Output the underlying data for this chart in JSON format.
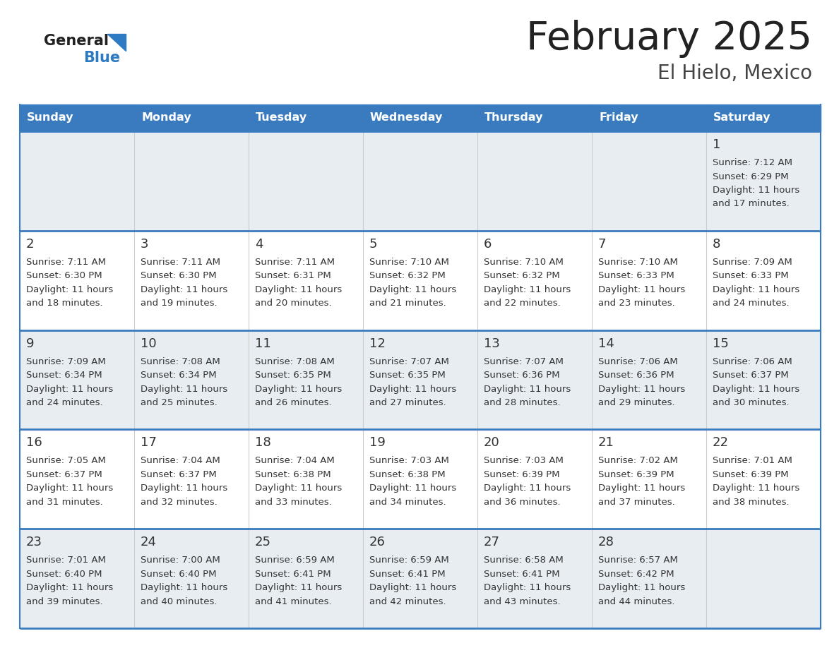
{
  "title": "February 2025",
  "subtitle": "El Hielo, Mexico",
  "header_color": "#3a7bbf",
  "header_text_color": "#ffffff",
  "days_of_week": [
    "Sunday",
    "Monday",
    "Tuesday",
    "Wednesday",
    "Thursday",
    "Friday",
    "Saturday"
  ],
  "bg_color": "#ffffff",
  "row_bg_odd": "#e8edf2",
  "row_bg_even": "#ffffff",
  "day_number_color": "#333333",
  "info_text_color": "#333333",
  "border_color": "#3a7bbf",
  "logo_black": "#222222",
  "logo_blue": "#2e7bc4",
  "title_color": "#222222",
  "subtitle_color": "#444444",
  "calendar_data": [
    [
      null,
      null,
      null,
      null,
      null,
      null,
      {
        "day": 1,
        "sunrise": "7:12 AM",
        "sunset": "6:29 PM",
        "daylight": "11 hours",
        "daylight2": "and 17 minutes."
      }
    ],
    [
      {
        "day": 2,
        "sunrise": "7:11 AM",
        "sunset": "6:30 PM",
        "daylight": "11 hours",
        "daylight2": "and 18 minutes."
      },
      {
        "day": 3,
        "sunrise": "7:11 AM",
        "sunset": "6:30 PM",
        "daylight": "11 hours",
        "daylight2": "and 19 minutes."
      },
      {
        "day": 4,
        "sunrise": "7:11 AM",
        "sunset": "6:31 PM",
        "daylight": "11 hours",
        "daylight2": "and 20 minutes."
      },
      {
        "day": 5,
        "sunrise": "7:10 AM",
        "sunset": "6:32 PM",
        "daylight": "11 hours",
        "daylight2": "and 21 minutes."
      },
      {
        "day": 6,
        "sunrise": "7:10 AM",
        "sunset": "6:32 PM",
        "daylight": "11 hours",
        "daylight2": "and 22 minutes."
      },
      {
        "day": 7,
        "sunrise": "7:10 AM",
        "sunset": "6:33 PM",
        "daylight": "11 hours",
        "daylight2": "and 23 minutes."
      },
      {
        "day": 8,
        "sunrise": "7:09 AM",
        "sunset": "6:33 PM",
        "daylight": "11 hours",
        "daylight2": "and 24 minutes."
      }
    ],
    [
      {
        "day": 9,
        "sunrise": "7:09 AM",
        "sunset": "6:34 PM",
        "daylight": "11 hours",
        "daylight2": "and 24 minutes."
      },
      {
        "day": 10,
        "sunrise": "7:08 AM",
        "sunset": "6:34 PM",
        "daylight": "11 hours",
        "daylight2": "and 25 minutes."
      },
      {
        "day": 11,
        "sunrise": "7:08 AM",
        "sunset": "6:35 PM",
        "daylight": "11 hours",
        "daylight2": "and 26 minutes."
      },
      {
        "day": 12,
        "sunrise": "7:07 AM",
        "sunset": "6:35 PM",
        "daylight": "11 hours",
        "daylight2": "and 27 minutes."
      },
      {
        "day": 13,
        "sunrise": "7:07 AM",
        "sunset": "6:36 PM",
        "daylight": "11 hours",
        "daylight2": "and 28 minutes."
      },
      {
        "day": 14,
        "sunrise": "7:06 AM",
        "sunset": "6:36 PM",
        "daylight": "11 hours",
        "daylight2": "and 29 minutes."
      },
      {
        "day": 15,
        "sunrise": "7:06 AM",
        "sunset": "6:37 PM",
        "daylight": "11 hours",
        "daylight2": "and 30 minutes."
      }
    ],
    [
      {
        "day": 16,
        "sunrise": "7:05 AM",
        "sunset": "6:37 PM",
        "daylight": "11 hours",
        "daylight2": "and 31 minutes."
      },
      {
        "day": 17,
        "sunrise": "7:04 AM",
        "sunset": "6:37 PM",
        "daylight": "11 hours",
        "daylight2": "and 32 minutes."
      },
      {
        "day": 18,
        "sunrise": "7:04 AM",
        "sunset": "6:38 PM",
        "daylight": "11 hours",
        "daylight2": "and 33 minutes."
      },
      {
        "day": 19,
        "sunrise": "7:03 AM",
        "sunset": "6:38 PM",
        "daylight": "11 hours",
        "daylight2": "and 34 minutes."
      },
      {
        "day": 20,
        "sunrise": "7:03 AM",
        "sunset": "6:39 PM",
        "daylight": "11 hours",
        "daylight2": "and 36 minutes."
      },
      {
        "day": 21,
        "sunrise": "7:02 AM",
        "sunset": "6:39 PM",
        "daylight": "11 hours",
        "daylight2": "and 37 minutes."
      },
      {
        "day": 22,
        "sunrise": "7:01 AM",
        "sunset": "6:39 PM",
        "daylight": "11 hours",
        "daylight2": "and 38 minutes."
      }
    ],
    [
      {
        "day": 23,
        "sunrise": "7:01 AM",
        "sunset": "6:40 PM",
        "daylight": "11 hours",
        "daylight2": "and 39 minutes."
      },
      {
        "day": 24,
        "sunrise": "7:00 AM",
        "sunset": "6:40 PM",
        "daylight": "11 hours",
        "daylight2": "and 40 minutes."
      },
      {
        "day": 25,
        "sunrise": "6:59 AM",
        "sunset": "6:41 PM",
        "daylight": "11 hours",
        "daylight2": "and 41 minutes."
      },
      {
        "day": 26,
        "sunrise": "6:59 AM",
        "sunset": "6:41 PM",
        "daylight": "11 hours",
        "daylight2": "and 42 minutes."
      },
      {
        "day": 27,
        "sunrise": "6:58 AM",
        "sunset": "6:41 PM",
        "daylight": "11 hours",
        "daylight2": "and 43 minutes."
      },
      {
        "day": 28,
        "sunrise": "6:57 AM",
        "sunset": "6:42 PM",
        "daylight": "11 hours",
        "daylight2": "and 44 minutes."
      },
      null
    ]
  ]
}
